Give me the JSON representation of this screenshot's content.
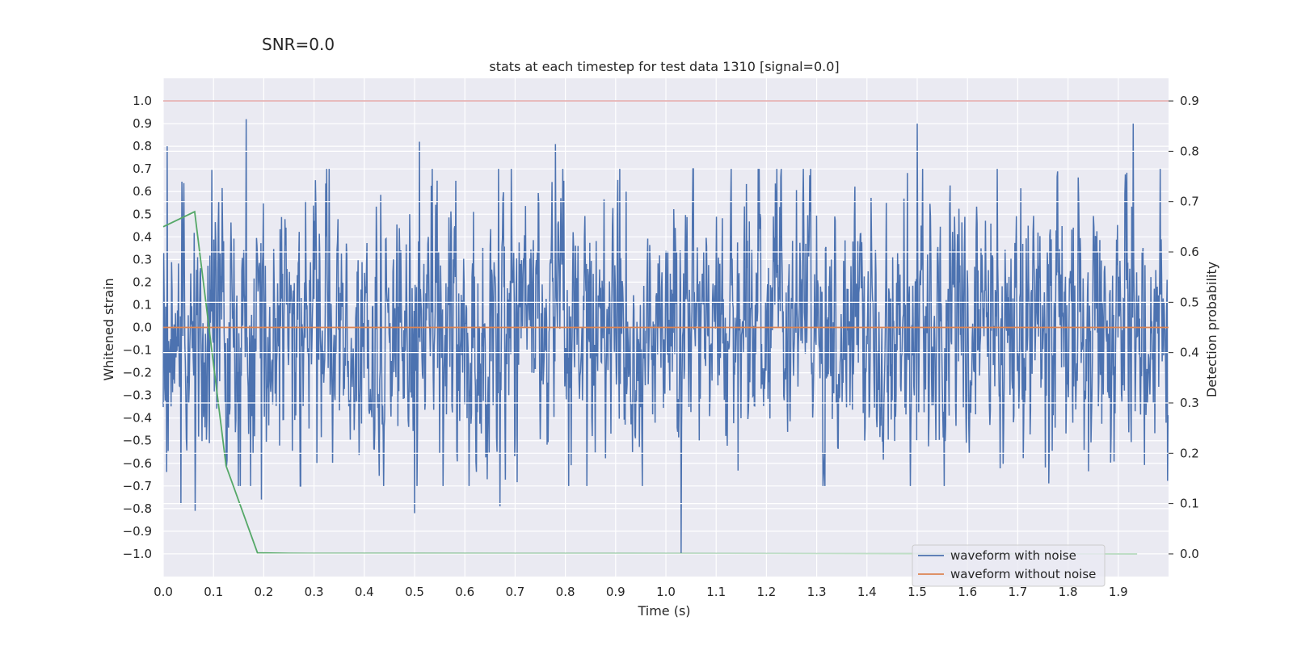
{
  "figure": {
    "suptitle": "SNR=0.0"
  },
  "chart_data": {
    "type": "line",
    "title": "stats at each timestep for test data 1310 [signal=0.0]",
    "xlabel": "Time (s)",
    "ylabel": "Whitened strain",
    "ylabel_right": "Detection probability",
    "xlim": [
      0.0,
      2.0
    ],
    "ylim": [
      -1.1,
      1.1
    ],
    "ylim_right": [
      -0.045,
      0.945
    ],
    "xticks": [
      "0.0",
      "0.1",
      "0.2",
      "0.3",
      "0.4",
      "0.5",
      "0.6",
      "0.7",
      "0.8",
      "0.9",
      "1.0",
      "1.1",
      "1.2",
      "1.3",
      "1.4",
      "1.5",
      "1.6",
      "1.7",
      "1.8",
      "1.9"
    ],
    "xtick_values": [
      0.0,
      0.1,
      0.2,
      0.3,
      0.4,
      0.5,
      0.6,
      0.7,
      0.8,
      0.9,
      1.0,
      1.1,
      1.2,
      1.3,
      1.4,
      1.5,
      1.6,
      1.7,
      1.8,
      1.9
    ],
    "yticks": [
      "1.0",
      "0.9",
      "0.8",
      "0.7",
      "0.6",
      "0.5",
      "0.4",
      "0.3",
      "0.2",
      "0.1",
      "0.0",
      "−0.1",
      "−0.2",
      "−0.3",
      "−0.4",
      "−0.5",
      "−0.6",
      "−0.7",
      "−0.8",
      "−0.9",
      "−1.0"
    ],
    "ytick_values": [
      1.0,
      0.9,
      0.8,
      0.7,
      0.6,
      0.5,
      0.4,
      0.3,
      0.2,
      0.1,
      0.0,
      -0.1,
      -0.2,
      -0.3,
      -0.4,
      -0.5,
      -0.6,
      -0.7,
      -0.8,
      -0.9,
      -1.0
    ],
    "yticks_right": [
      "0.9",
      "0.8",
      "0.7",
      "0.6",
      "0.5",
      "0.4",
      "0.3",
      "0.2",
      "0.1",
      "0.0"
    ],
    "ytick_values_right": [
      0.9,
      0.8,
      0.7,
      0.6,
      0.5,
      0.4,
      0.3,
      0.2,
      0.1,
      0.0
    ],
    "grid": true,
    "legend_position": "lower-right",
    "series": [
      {
        "name": "waveform with noise",
        "color": "#4c72b0",
        "axis": "left",
        "description": "dense noise trace, 2048 samples, amplitude mostly within ±0.6, peaks near 0.92 at t≈0.165 and −1.0 at t≈1.03",
        "sample_count": 2048,
        "notable_points": [
          {
            "x": 0.008,
            "y": 0.8
          },
          {
            "x": 0.035,
            "y": -0.78
          },
          {
            "x": 0.063,
            "y": -0.81
          },
          {
            "x": 0.165,
            "y": 0.92
          },
          {
            "x": 0.195,
            "y": -0.76
          },
          {
            "x": 0.5,
            "y": -0.82
          },
          {
            "x": 0.51,
            "y": 0.82
          },
          {
            "x": 0.67,
            "y": -0.79
          },
          {
            "x": 0.78,
            "y": 0.81
          },
          {
            "x": 1.03,
            "y": -1.0
          },
          {
            "x": 1.5,
            "y": 0.9
          },
          {
            "x": 1.93,
            "y": 0.9
          }
        ]
      },
      {
        "name": "waveform without noise",
        "color": "#dd8452",
        "axis": "left",
        "x": [
          0.0,
          2.0
        ],
        "values": [
          0.0,
          0.0
        ]
      },
      {
        "color": "#55a868",
        "axis": "right",
        "x": [
          0.0,
          0.0625,
          0.125,
          0.1875,
          0.25,
          1.9375
        ],
        "values": [
          0.65,
          0.68,
          0.175,
          0.002,
          0.001,
          0.0
        ]
      },
      {
        "color": "#c44e52",
        "axis": "right",
        "x": [
          0.0,
          2.0
        ],
        "values": [
          0.9,
          0.9
        ]
      }
    ],
    "legend": [
      "waveform with noise",
      "waveform without noise"
    ]
  }
}
